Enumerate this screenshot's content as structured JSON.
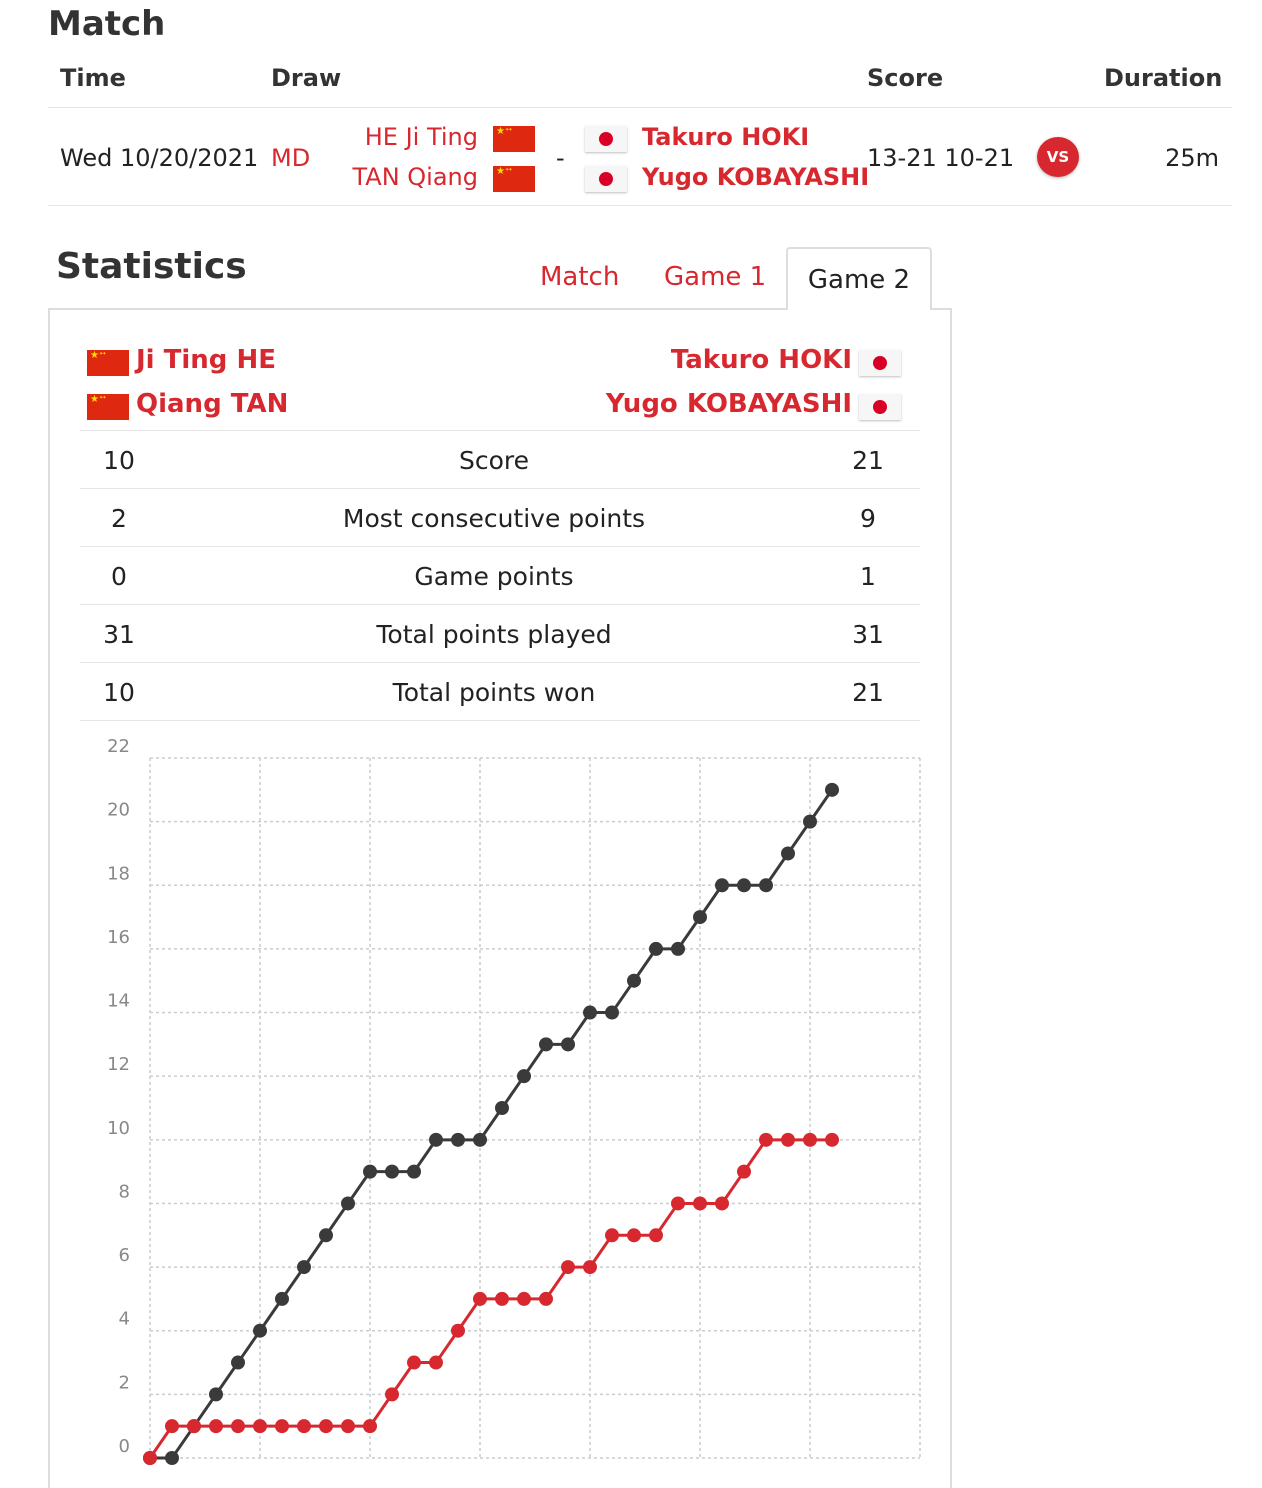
{
  "match": {
    "heading": "Match",
    "columns": {
      "time": "Time",
      "draw": "Draw",
      "score": "Score",
      "duration": "Duration"
    },
    "row": {
      "time": "Wed 10/20/2021",
      "draw": "MD",
      "team1": [
        "HE Ji Ting",
        "TAN Qiang"
      ],
      "separator": "-",
      "team2": [
        "Takuro HOKI",
        "Yugo KOBAYASHI"
      ],
      "score": "13-21 10-21",
      "vs_badge": "VS",
      "duration": "25m"
    }
  },
  "statistics": {
    "heading": "Statistics",
    "tabs": [
      "Match",
      "Game 1",
      "Game 2"
    ],
    "active_tab": "Game 2",
    "team1": [
      "Ji Ting HE",
      "Qiang TAN"
    ],
    "team2": [
      "Takuro HOKI",
      "Yugo KOBAYASHI"
    ],
    "rows": [
      {
        "left": "10",
        "label": "Score",
        "right": "21"
      },
      {
        "left": "2",
        "label": "Most consecutive points",
        "right": "9"
      },
      {
        "left": "0",
        "label": "Game points",
        "right": "1"
      },
      {
        "left": "31",
        "label": "Total points played",
        "right": "31"
      },
      {
        "left": "10",
        "label": "Total points won",
        "right": "21"
      }
    ]
  },
  "colors": {
    "accent": "#d7282f",
    "series_dark": "#3a3a3a",
    "series_red": "#d7282f",
    "grid": "#cccccc"
  },
  "chart_data": {
    "type": "line",
    "title": "",
    "xlabel": "",
    "ylabel": "",
    "ylim": [
      0,
      22
    ],
    "xlim": [
      0,
      35
    ],
    "yticks": [
      0,
      2,
      4,
      6,
      8,
      10,
      12,
      14,
      16,
      18,
      20,
      22
    ],
    "grid": true,
    "x": [
      0,
      1,
      2,
      3,
      4,
      5,
      6,
      7,
      8,
      9,
      10,
      11,
      12,
      13,
      14,
      15,
      16,
      17,
      18,
      19,
      20,
      21,
      22,
      23,
      24,
      25,
      26,
      27,
      28,
      29,
      30,
      31
    ],
    "series": [
      {
        "color": "#3a3a3a",
        "values": [
          0,
          0,
          1,
          2,
          3,
          4,
          5,
          6,
          7,
          8,
          9,
          9,
          9,
          10,
          10,
          10,
          11,
          12,
          13,
          13,
          14,
          14,
          15,
          16,
          16,
          17,
          18,
          18,
          18,
          19,
          20,
          21
        ]
      },
      {
        "color": "#d7282f",
        "values": [
          0,
          1,
          1,
          1,
          1,
          1,
          1,
          1,
          1,
          1,
          1,
          2,
          3,
          3,
          4,
          5,
          5,
          5,
          5,
          6,
          6,
          7,
          7,
          7,
          8,
          8,
          8,
          9,
          10,
          10,
          10,
          10
        ]
      }
    ]
  }
}
